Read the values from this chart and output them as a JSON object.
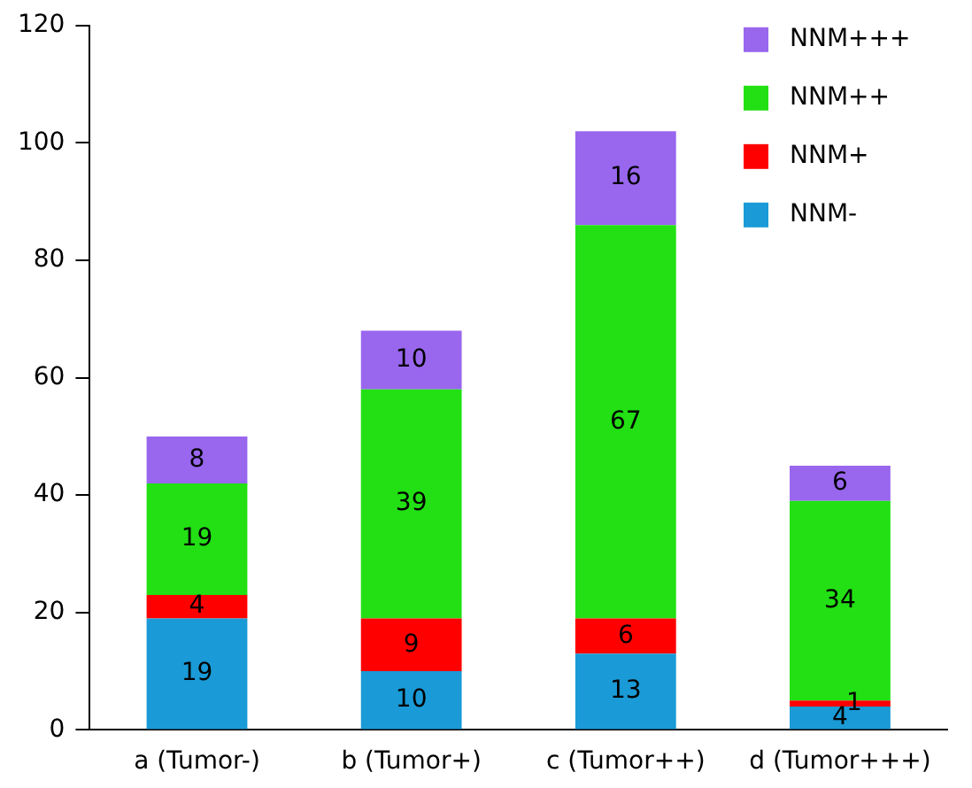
{
  "chart_data": {
    "type": "bar",
    "stacked": true,
    "categories": [
      "a (Tumor-)",
      "b (Tumor+)",
      "c (Tumor++)",
      "d (Tumor+++)"
    ],
    "series": [
      {
        "name": "NNM-",
        "color": "#1a9ad6",
        "values": [
          19,
          10,
          13,
          4
        ]
      },
      {
        "name": "NNM+",
        "color": "#ff0000",
        "values": [
          4,
          9,
          6,
          1
        ]
      },
      {
        "name": "NNM++",
        "color": "#22e014",
        "values": [
          19,
          39,
          67,
          34
        ]
      },
      {
        "name": "NNM+++",
        "color": "#9966ee",
        "values": [
          8,
          10,
          16,
          6
        ]
      }
    ],
    "ylim": [
      0,
      120
    ],
    "yticks": [
      0,
      20,
      40,
      60,
      80,
      100,
      120
    ],
    "grid": false,
    "legend": "top right",
    "data_labels": true
  }
}
